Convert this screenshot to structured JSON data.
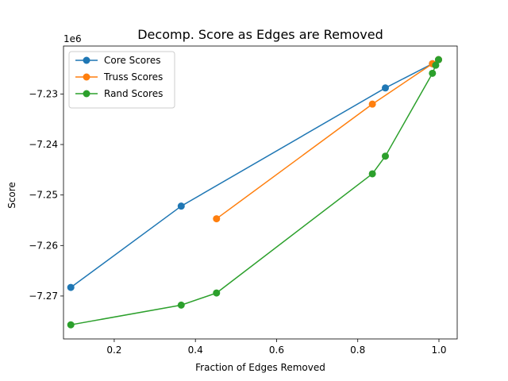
{
  "chart_data": {
    "type": "line",
    "title": "Decomp. Score as Edges are Removed",
    "xlabel": "Fraction of Edges Removed",
    "ylabel": "Score",
    "y_multiplier_label": "1e6",
    "xlim": [
      0.075,
      1.045
    ],
    "ylim": [
      -7.2785,
      -7.2205
    ],
    "x_ticks": [
      0.2,
      0.4,
      0.6,
      0.8,
      1.0
    ],
    "x_tick_labels": [
      "0.2",
      "0.4",
      "0.6",
      "0.8",
      "1.0"
    ],
    "y_ticks": [
      -7.27,
      -7.26,
      -7.25,
      -7.24,
      -7.23
    ],
    "y_tick_labels": [
      "−7.27",
      "−7.26",
      "−7.25",
      "−7.24",
      "−7.23"
    ],
    "grid": false,
    "legend_position": "upper-left",
    "series": [
      {
        "name": "Core Scores",
        "color": "#1f77b4",
        "points": [
          [
            0.093,
            -7.2683
          ],
          [
            0.365,
            -7.2522
          ],
          [
            0.868,
            -7.2288
          ],
          [
            0.984,
            -7.224
          ],
          [
            0.999,
            -7.2232
          ]
        ]
      },
      {
        "name": "Truss Scores",
        "color": "#ff7f0e",
        "points": [
          [
            0.452,
            -7.2547
          ],
          [
            0.836,
            -7.232
          ],
          [
            0.984,
            -7.224
          ],
          [
            0.999,
            -7.2232
          ]
        ]
      },
      {
        "name": "Rand Scores",
        "color": "#2ca02c",
        "points": [
          [
            0.093,
            -7.2757
          ],
          [
            0.365,
            -7.2718
          ],
          [
            0.452,
            -7.2694
          ],
          [
            0.836,
            -7.2458
          ],
          [
            0.868,
            -7.2423
          ],
          [
            0.984,
            -7.2259
          ],
          [
            0.992,
            -7.2243
          ],
          [
            0.999,
            -7.2232
          ]
        ]
      }
    ]
  }
}
